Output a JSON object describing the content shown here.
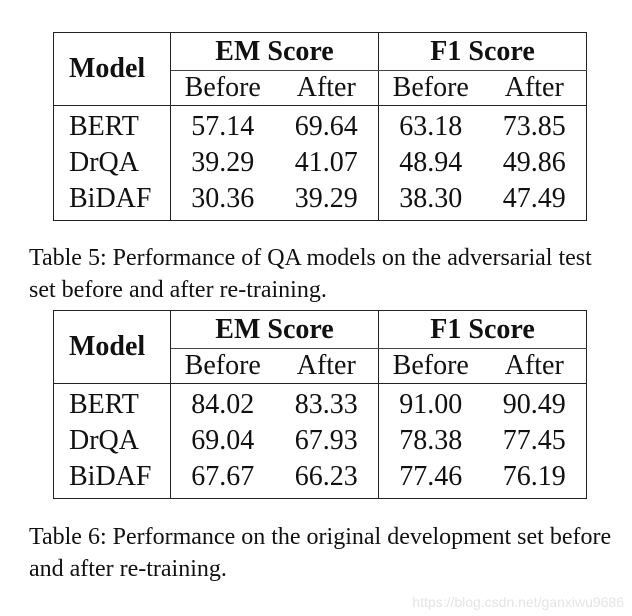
{
  "table5": {
    "model_header": "Model",
    "em_header": "EM Score",
    "f1_header": "F1 Score",
    "before_label": "Before",
    "after_label": "After",
    "rows": [
      {
        "model": "BERT",
        "em_before": "57.14",
        "em_after": "69.64",
        "f1_before": "63.18",
        "f1_after": "73.85"
      },
      {
        "model": "DrQA",
        "em_before": "39.29",
        "em_after": "41.07",
        "f1_before": "48.94",
        "f1_after": "49.86"
      },
      {
        "model": "BiDAF",
        "em_before": "30.36",
        "em_after": "39.29",
        "f1_before": "38.30",
        "f1_after": "47.49"
      }
    ],
    "caption": "Table 5:  Performance of QA models on the adversarial test set before and after re-training."
  },
  "table6": {
    "model_header": "Model",
    "em_header": "EM Score",
    "f1_header": "F1 Score",
    "before_label": "Before",
    "after_label": "After",
    "rows": [
      {
        "model": "BERT",
        "em_before": "84.02",
        "em_after": "83.33",
        "f1_before": "91.00",
        "f1_after": "90.49"
      },
      {
        "model": "DrQA",
        "em_before": "69.04",
        "em_after": "67.93",
        "f1_before": "78.38",
        "f1_after": "77.45"
      },
      {
        "model": "BiDAF",
        "em_before": "67.67",
        "em_after": "66.23",
        "f1_before": "77.46",
        "f1_after": "76.19"
      }
    ],
    "caption": "Table 6:  Performance on the original development set before and after re-training."
  },
  "watermark": "https://blog.csdn.net/ganxiwu9686"
}
